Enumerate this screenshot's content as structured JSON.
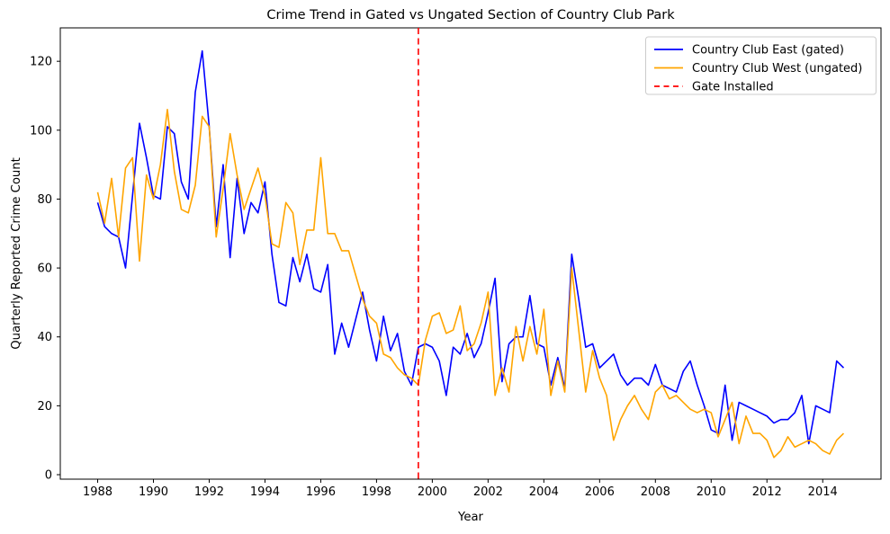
{
  "chart_data": {
    "type": "line",
    "title": "Crime Trend in Gated vs Ungated Section of Country Club Park",
    "xlabel": "Year",
    "ylabel": "Quarterly Reported Crime Count",
    "x_start": 1988.0,
    "x_step": 0.25,
    "xlim": [
      1986.66,
      2016.09
    ],
    "ylim": [
      -1.3,
      129.7
    ],
    "xticks": [
      1988,
      1990,
      1992,
      1994,
      1996,
      1998,
      2000,
      2002,
      2004,
      2006,
      2008,
      2010,
      2012,
      2014
    ],
    "yticks": [
      0,
      20,
      40,
      60,
      80,
      100,
      120
    ],
    "grid": false,
    "legend_position": "upper right",
    "background_color": "#ffffff",
    "annotations": [
      {
        "type": "vline",
        "x": 1999.5,
        "label": "Gate Installed",
        "color": "#ff0000",
        "style": "dashed"
      }
    ],
    "series": [
      {
        "name": "Country Club East (gated)",
        "color": "#0000ff",
        "values": [
          79,
          72,
          70,
          69,
          60,
          81,
          102,
          92,
          81,
          80,
          101,
          99,
          85,
          80,
          111,
          123,
          101,
          72,
          90,
          63,
          86,
          70,
          79,
          76,
          85,
          64,
          50,
          49,
          63,
          56,
          64,
          54,
          53,
          61,
          35,
          44,
          37,
          45,
          53,
          42,
          33,
          46,
          36,
          41,
          30,
          26,
          37,
          38,
          37,
          33,
          23,
          37,
          35,
          41,
          34,
          38,
          47,
          57,
          27,
          38,
          40,
          40,
          52,
          38,
          37,
          26,
          34,
          25,
          64,
          51,
          37,
          38,
          31,
          33,
          35,
          29,
          26,
          28,
          28,
          26,
          32,
          26,
          25,
          24,
          30,
          33,
          26,
          20,
          13,
          12,
          26,
          10,
          21,
          20,
          19,
          18,
          17,
          15,
          16,
          16,
          18,
          23,
          9,
          20,
          19,
          18,
          33,
          31
        ]
      },
      {
        "name": "Country Club West (ungated)",
        "color": "#ffa500",
        "values": [
          82,
          73,
          86,
          69,
          89,
          92,
          62,
          87,
          80,
          90,
          106,
          88,
          77,
          76,
          84,
          104,
          101,
          69,
          83,
          99,
          87,
          77,
          83,
          89,
          81,
          67,
          66,
          79,
          76,
          61,
          71,
          71,
          92,
          70,
          70,
          65,
          65,
          58,
          51,
          46,
          44,
          35,
          34,
          31,
          29,
          28,
          26,
          39,
          46,
          47,
          41,
          42,
          49,
          36,
          38,
          44,
          53,
          23,
          31,
          24,
          43,
          33,
          43,
          35,
          48,
          23,
          33,
          24,
          60,
          42,
          24,
          36,
          28,
          23,
          10,
          16,
          20,
          23,
          19,
          16,
          24,
          26,
          22,
          23,
          21,
          19,
          18,
          19,
          18,
          11,
          16,
          21,
          9,
          17,
          12,
          12,
          10,
          5,
          7,
          11,
          8,
          9,
          10,
          9,
          7,
          6,
          10,
          12
        ]
      }
    ]
  }
}
